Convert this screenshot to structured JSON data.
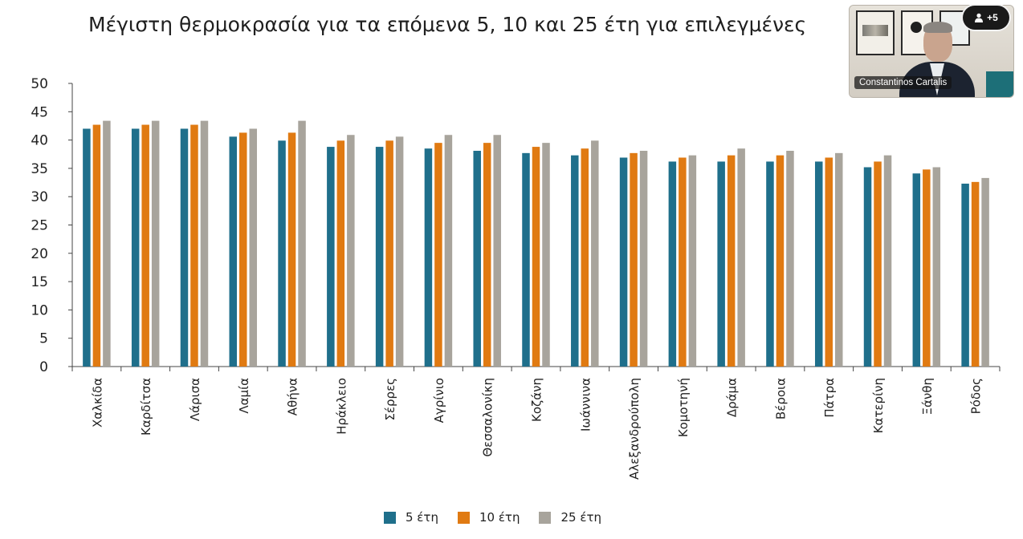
{
  "chart_data": {
    "type": "bar",
    "title": "Μέγιστη θερμοκρασία για τα επόμενα 5, 10 και 25 έτη για επιλεγμένες",
    "xlabel": "",
    "ylabel": "",
    "ylim": [
      0,
      50
    ],
    "yticks": [
      0,
      5,
      10,
      15,
      20,
      25,
      30,
      35,
      40,
      45,
      50
    ],
    "grid": false,
    "legend_position": "bottom",
    "categories": [
      "Χαλκίδα",
      "Καρδίτσα",
      "Λάρισα",
      "Λαμία",
      "Αθήνα",
      "Ηράκλειο",
      "Σέρρες",
      "Αγρίνιο",
      "Θεσσαλονίκη",
      "Κοζάνη",
      "Ιωάννινα",
      "Αλεξανδρούπολη",
      "Κομοτηνή",
      "Δράμα",
      "Βέροια",
      "Πάτρα",
      "Κατερίνη",
      "Ξάνθη",
      "Ρόδος"
    ],
    "series": [
      {
        "name": "5 έτη",
        "color": "#1f6f8b",
        "values": [
          42.0,
          42.0,
          42.0,
          40.6,
          39.9,
          38.8,
          38.8,
          38.5,
          38.1,
          37.7,
          37.3,
          36.9,
          36.2,
          36.2,
          36.2,
          36.2,
          35.2,
          34.1,
          32.3
        ]
      },
      {
        "name": "10 έτη",
        "color": "#e07a12",
        "values": [
          42.7,
          42.7,
          42.7,
          41.3,
          41.3,
          39.9,
          39.9,
          39.5,
          39.5,
          38.8,
          38.5,
          37.7,
          36.9,
          37.3,
          37.3,
          36.9,
          36.2,
          34.8,
          32.6
        ]
      },
      {
        "name": "25 έτη",
        "color": "#a8a49c",
        "values": [
          43.4,
          43.4,
          43.4,
          42.0,
          43.4,
          40.9,
          40.6,
          40.9,
          40.9,
          39.5,
          39.9,
          38.1,
          37.3,
          38.5,
          38.1,
          37.7,
          37.3,
          35.2,
          33.3
        ]
      }
    ]
  },
  "legend": {
    "items": [
      {
        "label": "5 έτη"
      },
      {
        "label": "10 έτη"
      },
      {
        "label": "25 έτη"
      }
    ]
  },
  "video_call": {
    "participant_name": "Constantinos Cartalis",
    "extra_participants": "+5"
  }
}
